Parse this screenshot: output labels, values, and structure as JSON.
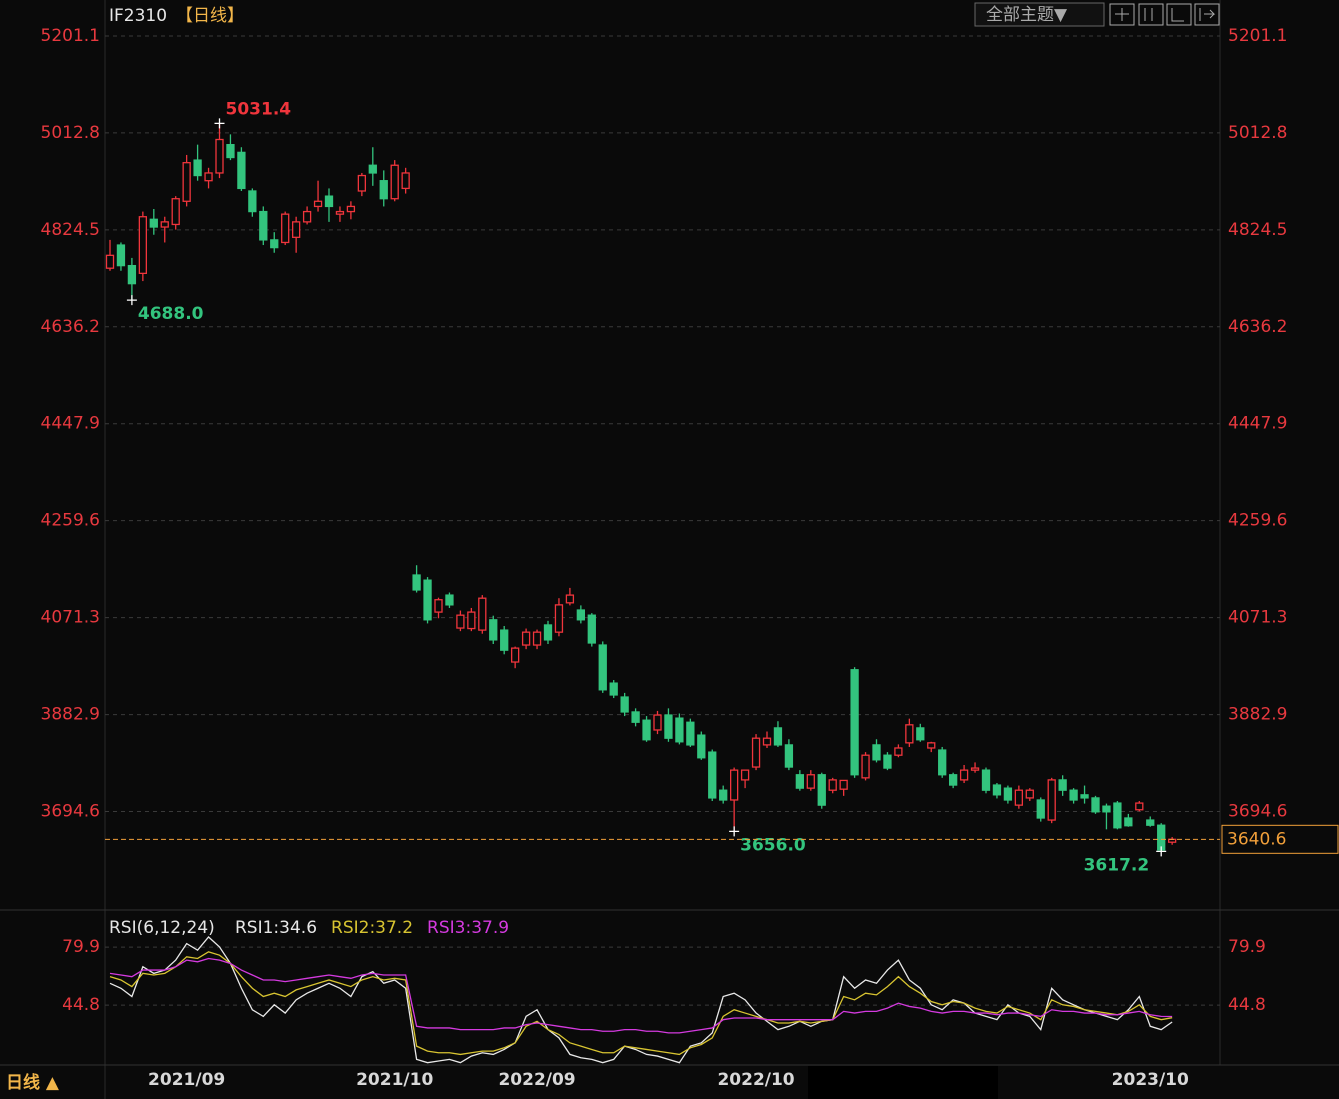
{
  "chart_data": [
    {
      "type": "candlestick",
      "title": "IF2310",
      "subtitle": "【日线】",
      "up_color": "#f0353c",
      "down_color": "#33c47e",
      "grid": true,
      "ylim": [
        3513,
        5271
      ],
      "yticks": [
        5201.1,
        5012.8,
        4824.5,
        4636.2,
        4447.9,
        4259.6,
        4071.3,
        3882.9,
        3694.6
      ],
      "open": [
        4750,
        4795,
        4755,
        4740,
        4845,
        4830,
        4835,
        4880,
        4960,
        4920,
        4935,
        4990,
        4975,
        4900,
        4860,
        4805,
        4800,
        4810,
        4840,
        4870,
        4890,
        4855,
        4860,
        4900,
        4950,
        4920,
        4885,
        4905,
        4154,
        4144,
        4082,
        4115,
        4051,
        4050,
        4047,
        4067,
        4047,
        3985,
        4018,
        4018,
        4057,
        4043,
        4100,
        4086,
        4076,
        4018,
        3944,
        3917,
        3888,
        3872,
        3853,
        3882,
        3876,
        3868,
        3843,
        3810,
        3736,
        3717,
        3756,
        3781,
        3824,
        3857,
        3824,
        3766,
        3740,
        3766,
        3736,
        3738,
        3970,
        3760,
        3824,
        3804,
        3804,
        3828,
        3857,
        3818,
        3814,
        3766,
        3756,
        3775,
        3775,
        3746,
        3740,
        3707,
        3721,
        3717,
        3678,
        3756,
        3736,
        3727,
        3721,
        3705,
        3711,
        3682,
        3698,
        3678,
        3668,
        3635
      ],
      "high": [
        4805,
        4800,
        4770,
        4860,
        4865,
        4850,
        4890,
        4970,
        4990,
        4945,
        5031.4,
        5010,
        4985,
        4905,
        4870,
        4820,
        4860,
        4850,
        4870,
        4920,
        4905,
        4870,
        4880,
        4935,
        4985,
        4940,
        4960,
        4945,
        4173,
        4150,
        4110,
        4120,
        4085,
        4090,
        4115,
        4075,
        4055,
        4015,
        4050,
        4048,
        4065,
        4109,
        4129,
        4095,
        4080,
        4025,
        3950,
        3925,
        3895,
        3880,
        3890,
        3895,
        3885,
        3875,
        3850,
        3815,
        3745,
        3780,
        3775,
        3845,
        3850,
        3870,
        3835,
        3775,
        3775,
        3770,
        3760,
        3755,
        3975,
        3810,
        3835,
        3810,
        3825,
        3875,
        3865,
        3830,
        3820,
        3770,
        3785,
        3790,
        3780,
        3750,
        3745,
        3745,
        3740,
        3722,
        3760,
        3765,
        3740,
        3745,
        3725,
        3710,
        3715,
        3690,
        3715,
        3685,
        3672,
        3645
      ],
      "low": [
        4745,
        4745,
        4688.0,
        4725,
        4815,
        4800,
        4825,
        4870,
        4920,
        4905,
        4925,
        4960,
        4900,
        4850,
        4795,
        4780,
        4795,
        4780,
        4835,
        4860,
        4840,
        4840,
        4845,
        4890,
        4910,
        4870,
        4880,
        4895,
        4120,
        4060,
        4070,
        4090,
        4045,
        4045,
        4040,
        4020,
        4000,
        3973,
        4010,
        4010,
        4020,
        4035,
        4095,
        4060,
        4015,
        3925,
        3915,
        3880,
        3860,
        3830,
        3845,
        3830,
        3825,
        3820,
        3795,
        3715,
        3710,
        3656.0,
        3740,
        3775,
        3818,
        3820,
        3775,
        3735,
        3735,
        3700,
        3730,
        3725,
        3760,
        3755,
        3790,
        3775,
        3800,
        3820,
        3830,
        3810,
        3760,
        3740,
        3750,
        3770,
        3730,
        3720,
        3710,
        3700,
        3715,
        3675,
        3672,
        3725,
        3710,
        3710,
        3690,
        3660,
        3660,
        3665,
        3695,
        3665,
        3617.2,
        3630
      ],
      "close": [
        4775,
        4755,
        4720,
        4850,
        4830,
        4840,
        4885,
        4955,
        4930,
        4935,
        5000,
        4965,
        4905,
        4860,
        4805,
        4790,
        4855,
        4840,
        4860,
        4880,
        4870,
        4860,
        4870,
        4930,
        4935,
        4885,
        4950,
        4935,
        4125,
        4067,
        4106,
        4096,
        4076,
        4082,
        4109,
        4028,
        4008,
        4012,
        4043,
        4043,
        4028,
        4096,
        4115,
        4067,
        4022,
        3931,
        3921,
        3888,
        3868,
        3834,
        3882,
        3837,
        3830,
        3824,
        3799,
        3721,
        3717,
        3775,
        3775,
        3837,
        3837,
        3824,
        3781,
        3740,
        3766,
        3707,
        3756,
        3755,
        3766,
        3804,
        3795,
        3779,
        3818,
        3863,
        3834,
        3828,
        3766,
        3746,
        3775,
        3779,
        3736,
        3727,
        3717,
        3736,
        3736,
        3682,
        3756,
        3736,
        3717,
        3721,
        3694,
        3694,
        3663,
        3667,
        3711,
        3668,
        3620,
        3640.6
      ],
      "annotations": [
        {
          "value": 5031.4,
          "label": "5031.4"
        },
        {
          "value": 4688.0,
          "label": "4688.0"
        },
        {
          "value": 3656.0,
          "label": "3656.0"
        },
        {
          "value": 3617.2,
          "label": "3617.2"
        }
      ],
      "last_price": {
        "value": 3640.6,
        "label": "3640.6"
      }
    },
    {
      "type": "line",
      "title": "RSI(6,12,24)",
      "grid": true,
      "ylim": [
        8.6,
        101.1
      ],
      "yticks": [
        79.9,
        44.8
      ],
      "categories": [
        null,
        null,
        null,
        null,
        null,
        null,
        null,
        "2021/09",
        null,
        null,
        null,
        null,
        null,
        null,
        null,
        null,
        null,
        null,
        null,
        null,
        null,
        null,
        null,
        null,
        null,
        null,
        "2021/10",
        null,
        null,
        null,
        null,
        null,
        null,
        null,
        null,
        null,
        null,
        null,
        null,
        "2022/09",
        null,
        null,
        null,
        null,
        null,
        null,
        null,
        null,
        null,
        null,
        null,
        null,
        null,
        null,
        null,
        null,
        null,
        null,
        null,
        "2022/10",
        null,
        null,
        null,
        null,
        null,
        null,
        null,
        null,
        null,
        null,
        null,
        null,
        null,
        null,
        null,
        null,
        null,
        null,
        null,
        null,
        null,
        null,
        null,
        null,
        null,
        null,
        null,
        null,
        null,
        null,
        null,
        null,
        null,
        null,
        null,
        "2023/10",
        null,
        null
      ],
      "series": [
        {
          "name": "RSI1:34.6",
          "color": "#e8e8e8",
          "values": [
            58,
            55,
            50,
            68,
            64,
            66,
            72,
            82,
            78,
            86,
            80,
            70,
            55,
            42,
            38,
            45,
            40,
            48,
            52,
            55,
            58,
            55,
            50,
            62,
            65,
            58,
            60,
            55,
            12,
            10,
            11,
            12,
            10,
            14,
            16,
            15,
            18,
            22,
            38,
            42,
            30,
            25,
            15,
            13,
            12,
            10,
            12,
            20,
            18,
            15,
            14,
            12,
            10,
            20,
            22,
            28,
            50,
            52,
            48,
            40,
            35,
            30,
            32,
            35,
            32,
            35,
            36,
            62,
            55,
            60,
            58,
            66,
            72,
            60,
            55,
            45,
            42,
            48,
            46,
            40,
            38,
            36,
            45,
            40,
            38,
            30,
            55,
            48,
            45,
            42,
            40,
            38,
            36,
            42,
            50,
            32,
            30,
            34.6
          ]
        },
        {
          "name": "RSI2:37.2",
          "color": "#d8c431",
          "values": [
            62,
            60,
            56,
            64,
            63,
            64,
            68,
            74,
            73,
            77,
            75,
            70,
            62,
            55,
            50,
            52,
            50,
            54,
            56,
            58,
            60,
            58,
            56,
            60,
            62,
            60,
            61,
            60,
            20,
            17,
            16,
            16,
            15,
            16,
            17,
            17,
            19,
            22,
            32,
            35,
            30,
            27,
            22,
            20,
            18,
            16,
            16,
            20,
            19,
            18,
            17,
            16,
            15,
            19,
            21,
            25,
            38,
            42,
            40,
            38,
            36,
            34,
            34,
            35,
            34,
            35,
            36,
            50,
            48,
            52,
            51,
            56,
            62,
            56,
            52,
            47,
            45,
            47,
            46,
            43,
            41,
            40,
            44,
            42,
            40,
            36,
            48,
            45,
            44,
            42,
            41,
            40,
            39,
            41,
            45,
            38,
            36,
            37.2
          ]
        },
        {
          "name": "RSI3:37.9",
          "color": "#d43adf",
          "values": [
            64,
            63,
            62,
            66,
            66,
            66,
            68,
            72,
            71,
            73,
            72,
            70,
            66,
            63,
            60,
            60,
            59,
            60,
            61,
            62,
            63,
            62,
            61,
            63,
            64,
            63,
            63,
            63,
            32,
            31,
            31,
            31,
            30,
            30,
            30,
            30,
            31,
            31,
            33,
            34,
            33,
            32,
            31,
            30,
            30,
            29,
            29,
            30,
            30,
            29,
            29,
            28,
            28,
            29,
            30,
            31,
            36,
            37,
            37,
            37,
            36,
            36,
            36,
            36,
            36,
            36,
            36,
            41,
            40,
            41,
            41,
            43,
            46,
            44,
            43,
            41,
            40,
            41,
            41,
            40,
            40,
            39,
            40,
            40,
            39,
            38,
            42,
            41,
            41,
            40,
            40,
            39,
            39,
            40,
            41,
            39,
            38,
            37.9
          ]
        }
      ]
    }
  ],
  "toolbar": {
    "theme_button": "全部主题▼"
  },
  "period_label": "日线 ▲"
}
